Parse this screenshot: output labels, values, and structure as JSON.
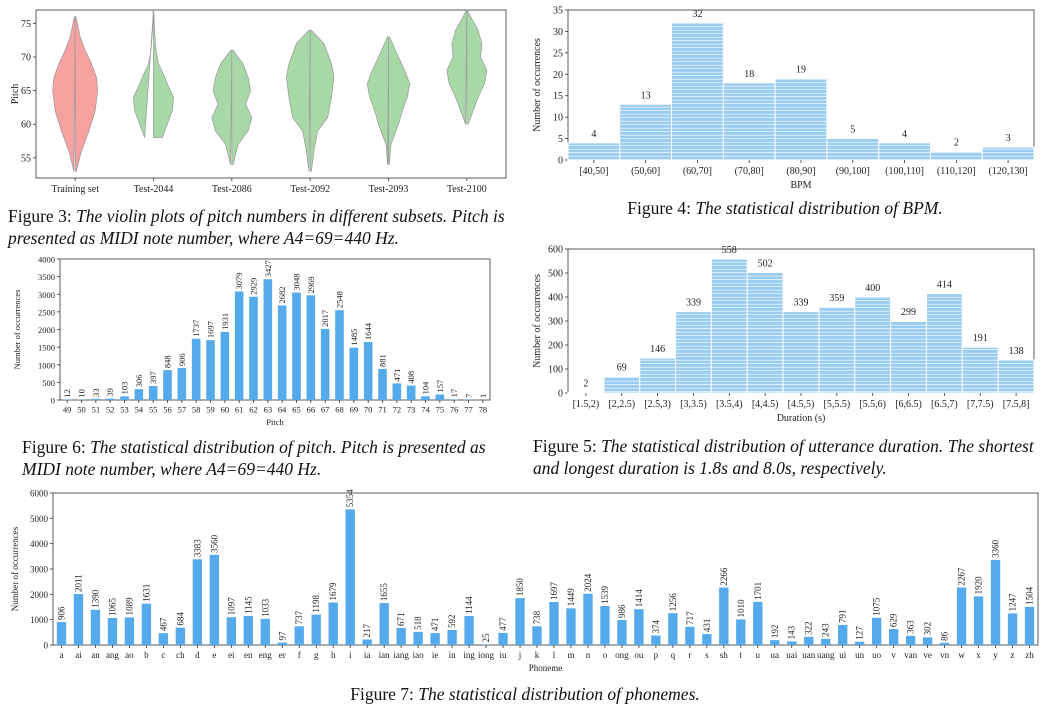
{
  "chart_data": [
    {
      "id": "fig3",
      "type": "violin",
      "caption_label": "Figure 3:",
      "caption_text": "The violin plots of pitch numbers in different subsets. Pitch is presented as MIDI note number, where A4=69=440 Hz.",
      "xlabel": "",
      "ylabel": "Pitch",
      "ylim": [
        52,
        77
      ],
      "yticks": [
        55,
        60,
        65,
        70,
        75
      ],
      "grid": false,
      "categories": [
        "Training set",
        "Test-2044",
        "Test-2086",
        "Test-2092",
        "Test-2093",
        "Test-2100"
      ],
      "series": [
        {
          "color": "#f7a1a1",
          "min": 53,
          "max": 76,
          "profile": [
            [
              53,
              0.05
            ],
            [
              56,
              0.25
            ],
            [
              59,
              0.55
            ],
            [
              62,
              0.8
            ],
            [
              65,
              0.9
            ],
            [
              67,
              0.85
            ],
            [
              69,
              0.65
            ],
            [
              71,
              0.4
            ],
            [
              73,
              0.2
            ],
            [
              76,
              0.03
            ]
          ]
        },
        {
          "color": "#a8d8a8",
          "min": 58,
          "max": 77,
          "profile": [
            [
              58,
              0.35
            ],
            [
              60,
              0.55
            ],
            [
              62,
              0.75
            ],
            [
              64,
              0.8
            ],
            [
              66,
              0.55
            ],
            [
              67,
              0.45
            ],
            [
              69,
              0.2
            ],
            [
              71,
              0.1
            ],
            [
              74,
              0.04
            ],
            [
              77,
              0.01
            ]
          ]
        },
        {
          "color": "#a8d8a8",
          "min": 54,
          "max": 71,
          "profile": [
            [
              54,
              0.05
            ],
            [
              57,
              0.25
            ],
            [
              59,
              0.65
            ],
            [
              61,
              0.8
            ],
            [
              63,
              0.55
            ],
            [
              65,
              0.75
            ],
            [
              67,
              0.65
            ],
            [
              69,
              0.45
            ],
            [
              71,
              0.05
            ]
          ]
        },
        {
          "color": "#a8d8a8",
          "min": 53,
          "max": 74,
          "profile": [
            [
              53,
              0.05
            ],
            [
              56,
              0.15
            ],
            [
              59,
              0.3
            ],
            [
              61,
              0.7
            ],
            [
              64,
              0.85
            ],
            [
              67,
              0.95
            ],
            [
              69,
              0.85
            ],
            [
              72,
              0.55
            ],
            [
              74,
              0.05
            ]
          ]
        },
        {
          "color": "#a8d8a8",
          "min": 54,
          "max": 73,
          "profile": [
            [
              54,
              0.03
            ],
            [
              57,
              0.1
            ],
            [
              60,
              0.4
            ],
            [
              62,
              0.55
            ],
            [
              64,
              0.75
            ],
            [
              66,
              0.85
            ],
            [
              68,
              0.65
            ],
            [
              70,
              0.4
            ],
            [
              73,
              0.04
            ]
          ]
        },
        {
          "color": "#a8d8a8",
          "min": 60,
          "max": 77,
          "profile": [
            [
              60,
              0.05
            ],
            [
              62,
              0.25
            ],
            [
              64,
              0.45
            ],
            [
              66,
              0.7
            ],
            [
              68,
              0.8
            ],
            [
              70,
              0.55
            ],
            [
              72,
              0.6
            ],
            [
              74,
              0.45
            ],
            [
              76,
              0.15
            ],
            [
              77,
              0.02
            ]
          ]
        }
      ]
    },
    {
      "id": "fig4",
      "type": "bar",
      "caption_label": "Figure 4:",
      "caption_text": "The statistical distribution of BPM.",
      "xlabel": "BPM",
      "ylabel": "Number of occurrences",
      "ylim": [
        0,
        35
      ],
      "yticks": [
        0,
        5,
        10,
        15,
        20,
        25,
        30,
        35
      ],
      "grid": false,
      "color": "#99ccf2",
      "categories": [
        "[40,50]",
        "(50,60]",
        "(60,70]",
        "(70,80]",
        "(80,90]",
        "(90,100]",
        "(100,110]",
        "(110,120]",
        "(120,130]"
      ],
      "values": [
        4,
        13,
        32,
        18,
        19,
        5,
        4,
        2,
        3
      ]
    },
    {
      "id": "fig6",
      "type": "bar",
      "caption_label": "Figure 6:",
      "caption_text": "The statistical distribution of pitch. Pitch is presented as MIDI note number, where A4=69=440 Hz.",
      "xlabel": "Pitch",
      "ylabel": "Number of occurrences",
      "ylim": [
        0,
        4000
      ],
      "yticks": [
        0,
        500,
        1000,
        1500,
        2000,
        2500,
        3000,
        3500,
        4000
      ],
      "grid": false,
      "color": "#55aaeb",
      "categories": [
        "49",
        "50",
        "51",
        "52",
        "53",
        "54",
        "55",
        "56",
        "57",
        "58",
        "59",
        "60",
        "61",
        "62",
        "63",
        "64",
        "65",
        "66",
        "67",
        "68",
        "69",
        "70",
        "71",
        "72",
        "73",
        "74",
        "75",
        "76",
        "77",
        "78"
      ],
      "values": [
        12,
        10,
        33,
        39,
        103,
        306,
        397,
        848,
        906,
        1737,
        1697,
        1931,
        3079,
        2929,
        3427,
        2682,
        3048,
        2969,
        2017,
        2548,
        1485,
        1644,
        881,
        471,
        408,
        104,
        157,
        17,
        7,
        1
      ]
    },
    {
      "id": "fig5",
      "type": "bar",
      "caption_label": "Figure 5:",
      "caption_text": "The statistical distribution of utterance duration. The shortest and longest duration is 1.8s and 8.0s, respectively.",
      "xlabel": "Duration (s)",
      "ylabel": "Number of occurrences",
      "ylim": [
        0,
        600
      ],
      "yticks": [
        0,
        100,
        200,
        300,
        400,
        500,
        600
      ],
      "grid": false,
      "color": "#99ccf2",
      "categories": [
        "[1.5,2)",
        "[2,2.5)",
        "[2.5,3)",
        "[3,3.5)",
        "[3.5,4)",
        "[4,4.5)",
        "[4.5,5)",
        "[5,5.5)",
        "[5.5,6)",
        "[6,6.5)",
        "[6.5,7)",
        "[7,7.5)",
        "[7.5,8]"
      ],
      "values": [
        2,
        69,
        146,
        339,
        558,
        502,
        339,
        359,
        400,
        299,
        414,
        191,
        138
      ]
    },
    {
      "id": "fig7",
      "type": "bar",
      "caption_label": "Figure 7:",
      "caption_text": "The statistical distribution of phonemes.",
      "xlabel": "Phoneme",
      "ylabel": "Number of occurrences",
      "ylim": [
        0,
        6000
      ],
      "yticks": [
        0,
        1000,
        2000,
        3000,
        4000,
        5000,
        6000
      ],
      "grid": false,
      "color": "#55aaeb",
      "categories": [
        "a",
        "ai",
        "an",
        "ang",
        "ao",
        "b",
        "c",
        "ch",
        "d",
        "e",
        "ei",
        "en",
        "eng",
        "er",
        "f",
        "g",
        "h",
        "i",
        "ia",
        "ian",
        "iang",
        "iao",
        "ie",
        "in",
        "ing",
        "iong",
        "iu",
        "j",
        "k",
        "l",
        "m",
        "n",
        "o",
        "ong",
        "ou",
        "p",
        "q",
        "r",
        "s",
        "sh",
        "t",
        "u",
        "ua",
        "uai",
        "uan",
        "uang",
        "ui",
        "un",
        "uo",
        "v",
        "van",
        "ve",
        "vn",
        "w",
        "x",
        "y",
        "z",
        "zh"
      ],
      "values": [
        906,
        2011,
        1390,
        1065,
        1089,
        1631,
        467,
        684,
        3383,
        3560,
        1097,
        1145,
        1033,
        97,
        737,
        1198,
        1679,
        5354,
        217,
        1655,
        671,
        518,
        471,
        592,
        1144,
        25,
        477,
        1850,
        738,
        1697,
        1449,
        2024,
        1539,
        986,
        1414,
        374,
        1256,
        717,
        431,
        2266,
        1010,
        1701,
        192,
        143,
        322,
        243,
        791,
        127,
        1075,
        629,
        363,
        302,
        86,
        2267,
        1920,
        3360,
        1247,
        1504
      ]
    }
  ]
}
